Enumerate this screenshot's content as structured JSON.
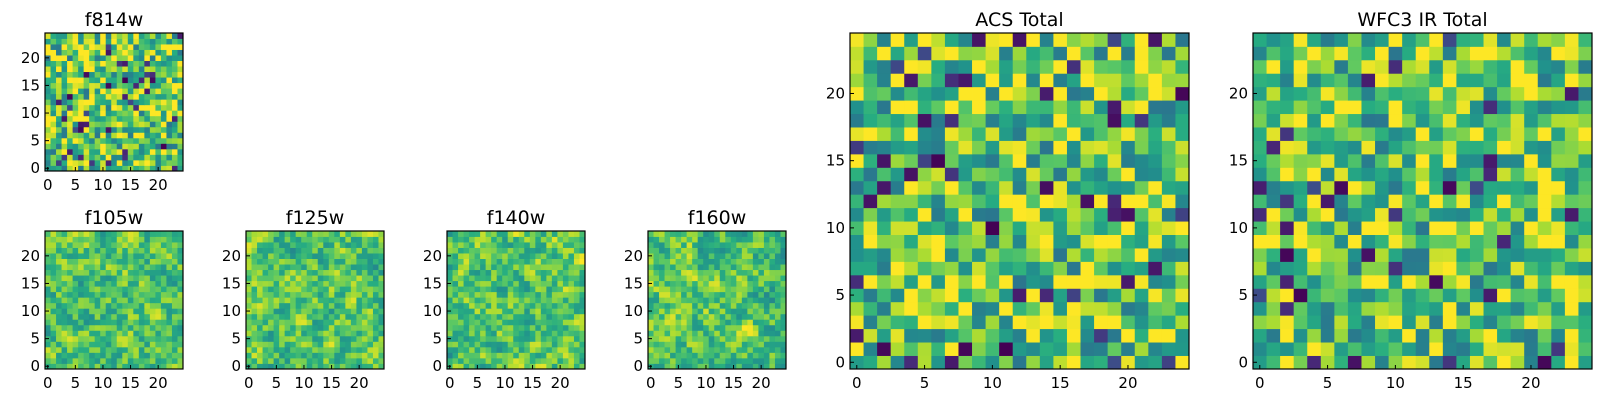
{
  "chart_data": [
    {
      "type": "heatmap",
      "title": "f814w",
      "size": 25,
      "seed": 11,
      "smooth": 0,
      "colormap": "viridis",
      "xlim": [
        0,
        24
      ],
      "ylim": [
        0,
        24
      ],
      "xticks": [
        0,
        5,
        10,
        15,
        20
      ],
      "yticks": [
        0,
        5,
        10,
        15,
        20
      ]
    },
    {
      "type": "heatmap",
      "title": "f105w",
      "size": 25,
      "seed": 23,
      "smooth": 1,
      "colormap": "viridis",
      "xlim": [
        0,
        24
      ],
      "ylim": [
        0,
        24
      ],
      "xticks": [
        0,
        5,
        10,
        15,
        20
      ],
      "yticks": [
        0,
        5,
        10,
        15,
        20
      ]
    },
    {
      "type": "heatmap",
      "title": "f125w",
      "size": 25,
      "seed": 37,
      "smooth": 1,
      "colormap": "viridis",
      "xlim": [
        0,
        24
      ],
      "ylim": [
        0,
        24
      ],
      "xticks": [
        0,
        5,
        10,
        15,
        20
      ],
      "yticks": [
        0,
        5,
        10,
        15,
        20
      ]
    },
    {
      "type": "heatmap",
      "title": "f140w",
      "size": 25,
      "seed": 41,
      "smooth": 1,
      "colormap": "viridis",
      "xlim": [
        0,
        24
      ],
      "ylim": [
        0,
        24
      ],
      "xticks": [
        0,
        5,
        10,
        15,
        20
      ],
      "yticks": [
        0,
        5,
        10,
        15,
        20
      ]
    },
    {
      "type": "heatmap",
      "title": "f160w",
      "size": 25,
      "seed": 53,
      "smooth": 1,
      "colormap": "viridis",
      "xlim": [
        0,
        24
      ],
      "ylim": [
        0,
        24
      ],
      "xticks": [
        0,
        5,
        10,
        15,
        20
      ],
      "yticks": [
        0,
        5,
        10,
        15,
        20
      ]
    },
    {
      "type": "heatmap",
      "title": "ACS Total",
      "size": 25,
      "seed": 67,
      "smooth": 0,
      "colormap": "viridis",
      "xlim": [
        0,
        24
      ],
      "ylim": [
        0,
        24
      ],
      "xticks": [
        0,
        5,
        10,
        15,
        20
      ],
      "yticks": [
        0,
        5,
        10,
        15,
        20
      ]
    },
    {
      "type": "heatmap",
      "title": "WFC3 IR Total",
      "size": 25,
      "seed": 79,
      "smooth": 0,
      "colormap": "viridis",
      "xlim": [
        0,
        24
      ],
      "ylim": [
        0,
        24
      ],
      "xticks": [
        0,
        5,
        10,
        15,
        20
      ],
      "yticks": [
        0,
        5,
        10,
        15,
        20
      ]
    }
  ]
}
